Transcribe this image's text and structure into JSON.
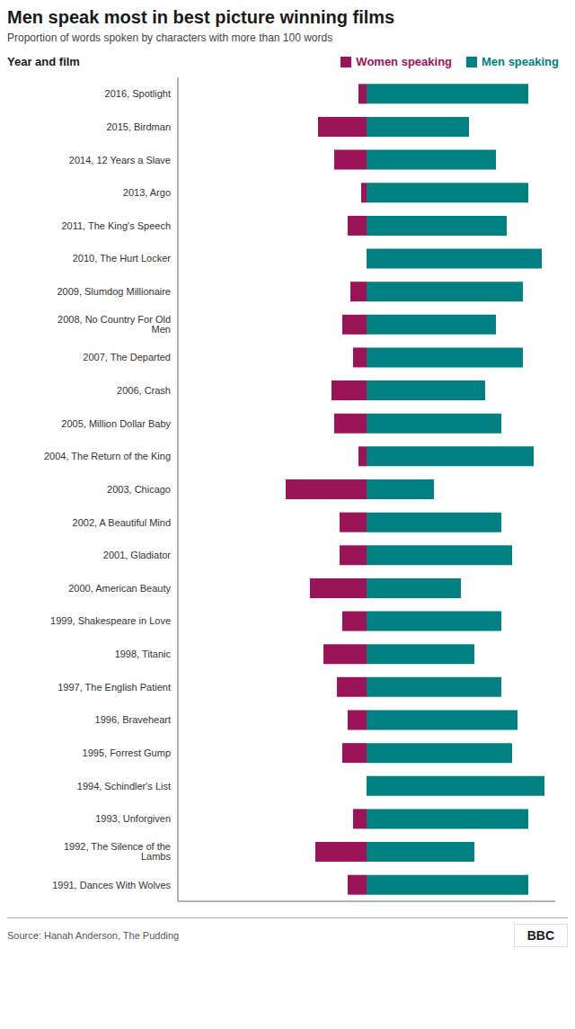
{
  "chart_data": {
    "type": "bar",
    "orientation": "horizontal",
    "title": "Men speak most in best picture winning films",
    "subtitle": "Proportion of words spoken by characters with more than 100 words",
    "ylabel": "Year and film",
    "categories": [
      "2016, Spotlight",
      "2015, Birdman",
      "2014, 12 Years a Slave",
      "2013, Argo",
      "2011, The King's Speech",
      "2010, The Hurt Locker",
      "2009, Slumdog Millionaire",
      "2008, No Country For Old Men",
      "2007, The Departed",
      "2006, Crash",
      "2005, Million Dollar Baby",
      "2004, The Return of the King",
      "2003, Chicago",
      "2002, A Beautiful Mind",
      "2001, Gladiator",
      "2000, American Beauty",
      "1999, Shakespeare in Love",
      "1998, Titanic",
      "1997, The English Patient",
      "1996, Braveheart",
      "1995, Forrest Gump",
      "1994, Schindler's List",
      "1993, Unforgiven",
      "1992, The Silence of the Lambs",
      "1991, Dances With Wolves"
    ],
    "series": [
      {
        "name": "Women speaking",
        "color": "#9B1458",
        "values": [
          0.03,
          0.18,
          0.12,
          0.02,
          0.07,
          0.0,
          0.06,
          0.09,
          0.05,
          0.13,
          0.12,
          0.03,
          0.3,
          0.1,
          0.1,
          0.21,
          0.09,
          0.16,
          0.11,
          0.07,
          0.09,
          0.0,
          0.05,
          0.19,
          0.07
        ]
      },
      {
        "name": "Men speaking",
        "color": "#008080",
        "values": [
          0.6,
          0.38,
          0.48,
          0.6,
          0.52,
          0.65,
          0.58,
          0.48,
          0.58,
          0.44,
          0.5,
          0.62,
          0.25,
          0.5,
          0.54,
          0.35,
          0.5,
          0.4,
          0.5,
          0.56,
          0.54,
          0.66,
          0.6,
          0.4,
          0.6
        ]
      }
    ],
    "xlim": [
      0,
      0.7
    ],
    "xticks": [
      0,
      0.1,
      0.2,
      0.3,
      0.4,
      0.5,
      0.6,
      0.7
    ],
    "tick_labels": false,
    "grid": false,
    "legend": "top",
    "annotations": [
      "Source: Hanah Anderson, The Pudding",
      "BBC"
    ]
  }
}
